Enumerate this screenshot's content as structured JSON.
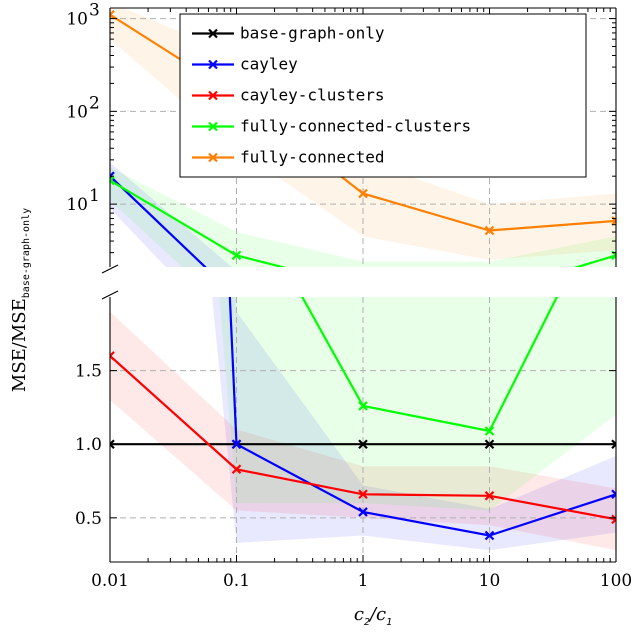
{
  "chart_data": {
    "type": "line",
    "x": [
      0.01,
      0.1,
      1,
      10,
      100
    ],
    "x_scale": "log",
    "xlim": [
      0.01,
      100
    ],
    "x_tick_labels": [
      "0.01",
      "0.1",
      "1",
      "10",
      "100"
    ],
    "xlabel_main": "c",
    "xlabel_sub1": "2",
    "xlabel_sep": "/c",
    "xlabel_sub2": "1",
    "ylabel_main": "MSE/MSE",
    "ylabel_sub": "base-graph-only",
    "broken_axis": true,
    "upper_panel": {
      "y_scale": "log",
      "ylim": [
        2.1,
        1300
      ],
      "y_tick_labels": [
        "10",
        "10",
        "10"
      ],
      "y_tick_exponents": [
        "3",
        "2",
        "1"
      ],
      "y_tick_values": [
        1000,
        100,
        10
      ]
    },
    "lower_panel": {
      "y_scale": "linear",
      "ylim": [
        0.2,
        2.0
      ],
      "y_tick_labels": [
        "1.5",
        "1.0",
        "0.5"
      ],
      "y_tick_values": [
        1.5,
        1.0,
        0.5
      ]
    },
    "grid": true,
    "legend_position": "top-right",
    "series": [
      {
        "name": "base-graph-only",
        "color": "#000000",
        "values": [
          1.0,
          1.0,
          1.0,
          1.0,
          1.0
        ],
        "band_low": null,
        "band_high": null
      },
      {
        "name": "cayley",
        "color": "#0000ff",
        "values": [
          20,
          1.0,
          0.54,
          0.38,
          0.66
        ],
        "band_low": [
          9,
          0.33,
          0.38,
          0.28,
          0.4
        ],
        "band_high": [
          28,
          1.9,
          0.72,
          0.56,
          0.92
        ]
      },
      {
        "name": "cayley-clusters",
        "color": "#ff0000",
        "values": [
          1.6,
          0.83,
          0.66,
          0.65,
          0.49
        ],
        "band_low": [
          1.3,
          0.55,
          0.5,
          0.45,
          0.28
        ],
        "band_high": [
          1.9,
          1.1,
          0.85,
          0.85,
          0.7
        ]
      },
      {
        "name": "fully-connected-clusters",
        "color": "#00ff00",
        "values": [
          18,
          2.8,
          1.26,
          1.09,
          2.8
        ],
        "band_low": [
          11,
          0.6,
          0.6,
          0.55,
          1.2
        ],
        "band_high": [
          25,
          5.0,
          2.4,
          2.4,
          4.5
        ]
      },
      {
        "name": "fully-connected",
        "color": "#ff8000",
        "values": [
          1100,
          150,
          13,
          5.2,
          6.6
        ],
        "band_low": [
          600,
          40,
          4.5,
          2.5,
          3.2
        ],
        "band_high": [
          1500,
          400,
          30,
          10,
          13
        ]
      }
    ]
  }
}
